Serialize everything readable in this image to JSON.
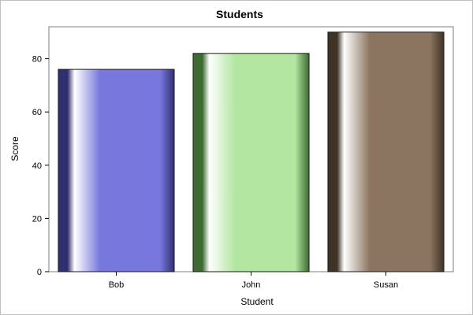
{
  "chart_data": {
    "type": "bar",
    "title": "Students",
    "xlabel": "Student",
    "ylabel": "Score",
    "categories": [
      "Bob",
      "John",
      "Susan"
    ],
    "values": [
      76,
      82,
      90
    ],
    "ylim": [
      0,
      92
    ],
    "yticks": [
      0,
      20,
      40,
      60,
      80
    ],
    "grid": false,
    "legend": "none",
    "colors": [
      "#7777dd",
      "#b3e6a0",
      "#8b7560"
    ],
    "edge_colors": [
      "#303070",
      "#3d6b32",
      "#3f3326"
    ]
  }
}
